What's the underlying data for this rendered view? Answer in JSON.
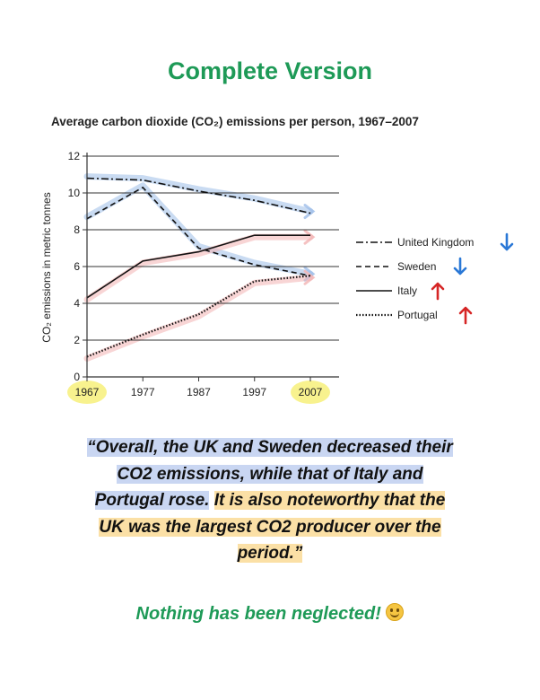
{
  "page": {
    "heading": "Complete Version",
    "footer": "Nothing has been neglected!",
    "quote_part1": "“Overall, the UK and Sweden decreased their CO2 emissions, while that of Italy and Portugal rose.",
    "quote_part2": "It is also noteworthy that the UK was the largest CO2 producer over the period.”"
  },
  "colors": {
    "heading": "#1e9a57",
    "down_arrow": "#2a78d6",
    "up_arrow": "#d62626",
    "highlight_blue": "#c9d6f2",
    "highlight_yellow": "#fbe0a6",
    "year_highlight": "#f7f07a"
  },
  "chart_data": {
    "type": "line",
    "title": "Average carbon dioxide (CO₂) emissions per person, 1967–2007",
    "ylabel": "CO₂ emissions in metric tonnes",
    "xlabel": "",
    "x": [
      1967,
      1977,
      1987,
      1997,
      2007
    ],
    "xticks": [
      "1967",
      "1977",
      "1987",
      "1997",
      "2007"
    ],
    "yticks": [
      "0",
      "2",
      "4",
      "6",
      "8",
      "10",
      "12"
    ],
    "ylim": [
      0,
      12
    ],
    "grid": true,
    "legend_position": "right",
    "series": [
      {
        "name": "United Kingdom",
        "style": "dash-dot",
        "trend": "down",
        "values": [
          10.8,
          10.7,
          10.1,
          9.6,
          8.9
        ]
      },
      {
        "name": "Sweden",
        "style": "dashed",
        "trend": "down",
        "values": [
          8.6,
          10.3,
          7.0,
          6.1,
          5.5
        ]
      },
      {
        "name": "Italy",
        "style": "solid",
        "trend": "up",
        "values": [
          4.3,
          6.3,
          6.8,
          7.7,
          7.7
        ]
      },
      {
        "name": "Portugal",
        "style": "dotted",
        "trend": "up",
        "values": [
          1.1,
          2.3,
          3.4,
          5.2,
          5.5
        ]
      }
    ],
    "highlighted_years": [
      "1967",
      "2007"
    ]
  }
}
